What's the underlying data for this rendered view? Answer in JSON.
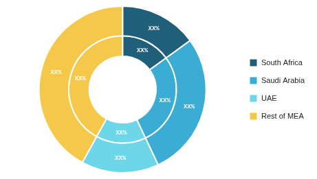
{
  "chart_data": {
    "type": "doughnut",
    "categories": [
      "South Africa",
      "Saudi Arabia",
      "UAE",
      "Rest of MEA"
    ],
    "colors": [
      "#1f5f7a",
      "#3badd4",
      "#6dd6e8",
      "#f5c84a"
    ],
    "series": [
      {
        "values": [
          15,
          28,
          15,
          42
        ],
        "value_labels": [
          "XX%",
          "XX%",
          "XX%",
          "XX%"
        ]
      },
      {
        "values": [
          15,
          28,
          15,
          42
        ],
        "value_labels": [
          "XX%",
          "XX%",
          "XX%",
          "XX%"
        ]
      }
    ],
    "data_labels": true,
    "legend": "right"
  }
}
